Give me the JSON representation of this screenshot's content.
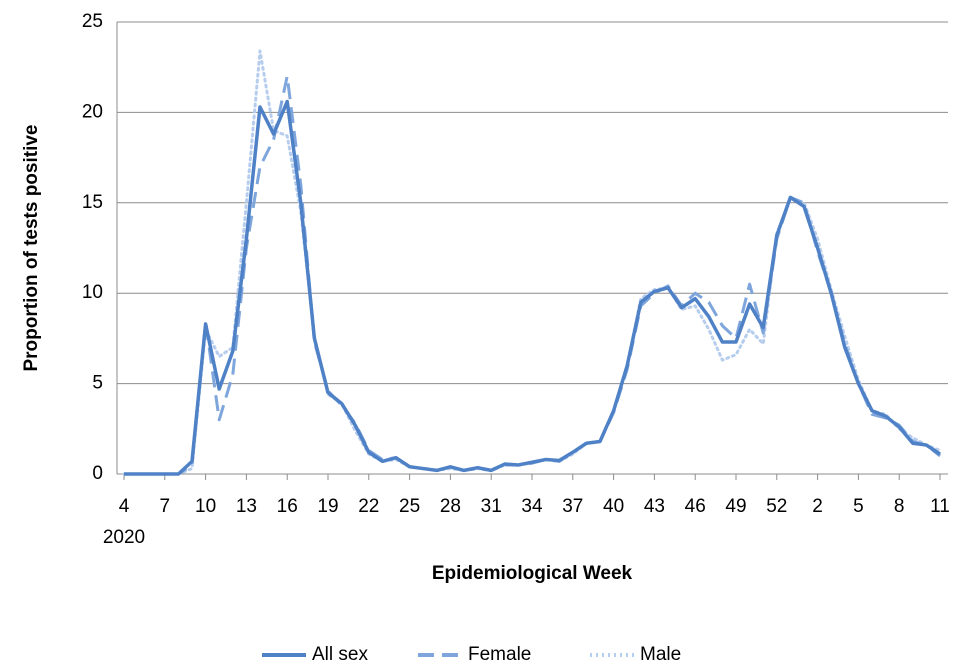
{
  "chart_data": {
    "type": "line",
    "x_label": "Epidemiological Week",
    "y_label": "Proportion of tests positive",
    "year_label": "2020",
    "categories": [
      "4",
      null,
      null,
      "7",
      null,
      null,
      "10",
      null,
      null,
      "13",
      null,
      null,
      "16",
      null,
      null,
      "19",
      null,
      null,
      "22",
      null,
      null,
      "25",
      null,
      null,
      "28",
      null,
      null,
      "31",
      null,
      null,
      "34",
      null,
      null,
      "37",
      null,
      null,
      "40",
      null,
      null,
      "43",
      null,
      null,
      "46",
      null,
      null,
      "49",
      null,
      null,
      "52",
      null,
      null,
      "2",
      null,
      null,
      "5",
      null,
      null,
      "8",
      null,
      null,
      "11"
    ],
    "series": [
      {
        "name": "All sex",
        "color": "#4f81c7",
        "style": "solid",
        "values": [
          0,
          0,
          0,
          0,
          0,
          0.7,
          8.3,
          4.7,
          6.8,
          13,
          20.3,
          18.8,
          20.6,
          15,
          7.5,
          4.5,
          3.9,
          2.7,
          1.2,
          0.7,
          0.9,
          0.4,
          0.3,
          0.2,
          0.4,
          0.2,
          0.35,
          0.2,
          0.55,
          0.5,
          0.65,
          0.8,
          0.75,
          1.2,
          1.7,
          1.8,
          3.5,
          6,
          9.5,
          10.1,
          10.3,
          9.2,
          9.7,
          8.7,
          7.3,
          7.3,
          9.4,
          8.1,
          13.2,
          15.3,
          14.8,
          12.5,
          10,
          7,
          5,
          3.5,
          3.2,
          2.6,
          1.7,
          1.6,
          1.1
        ]
      },
      {
        "name": "Female",
        "color": "#7ea6dc",
        "style": "dashed",
        "values": [
          0,
          0,
          0,
          0,
          0,
          0.5,
          8.4,
          3.0,
          5.5,
          12.5,
          17,
          18.5,
          22,
          16,
          7.3,
          4.6,
          3.8,
          2.8,
          1.3,
          0.8,
          0.9,
          0.4,
          0.3,
          0.2,
          0.4,
          0.2,
          0.3,
          0.2,
          0.5,
          0.5,
          0.6,
          0.8,
          0.7,
          1.2,
          1.7,
          1.8,
          3.4,
          5.8,
          9.3,
          10,
          10.4,
          9.3,
          10,
          9.5,
          8.2,
          7.5,
          10.5,
          7.8,
          13,
          15.3,
          15,
          12.3,
          10,
          7.2,
          5,
          3.3,
          3.1,
          2.7,
          1.8,
          1.6,
          1.0
        ]
      },
      {
        "name": "Male",
        "color": "#b7cdee",
        "style": "dotted",
        "values": [
          0,
          0,
          0,
          0,
          0,
          0.3,
          8,
          6.5,
          7,
          15,
          23.4,
          19,
          18.7,
          14.5,
          7.6,
          4.4,
          3.9,
          2.4,
          1.1,
          0.7,
          0.8,
          0.4,
          0.3,
          0.2,
          0.3,
          0.2,
          0.3,
          0.2,
          0.5,
          0.5,
          0.6,
          0.8,
          0.7,
          1.1,
          1.7,
          1.8,
          3.5,
          6,
          9.7,
          10.2,
          10.3,
          9.1,
          9.3,
          8,
          6.3,
          6.6,
          8,
          7.2,
          13.3,
          15.2,
          15,
          13,
          10.2,
          7.6,
          5.2,
          3.5,
          3.3,
          2.5,
          2,
          1.6,
          1.3
        ]
      }
    ],
    "ylim": [
      0,
      25
    ],
    "yticks": [
      0,
      5,
      10,
      15,
      20,
      25
    ],
    "grid": true,
    "legend": "bottom"
  }
}
